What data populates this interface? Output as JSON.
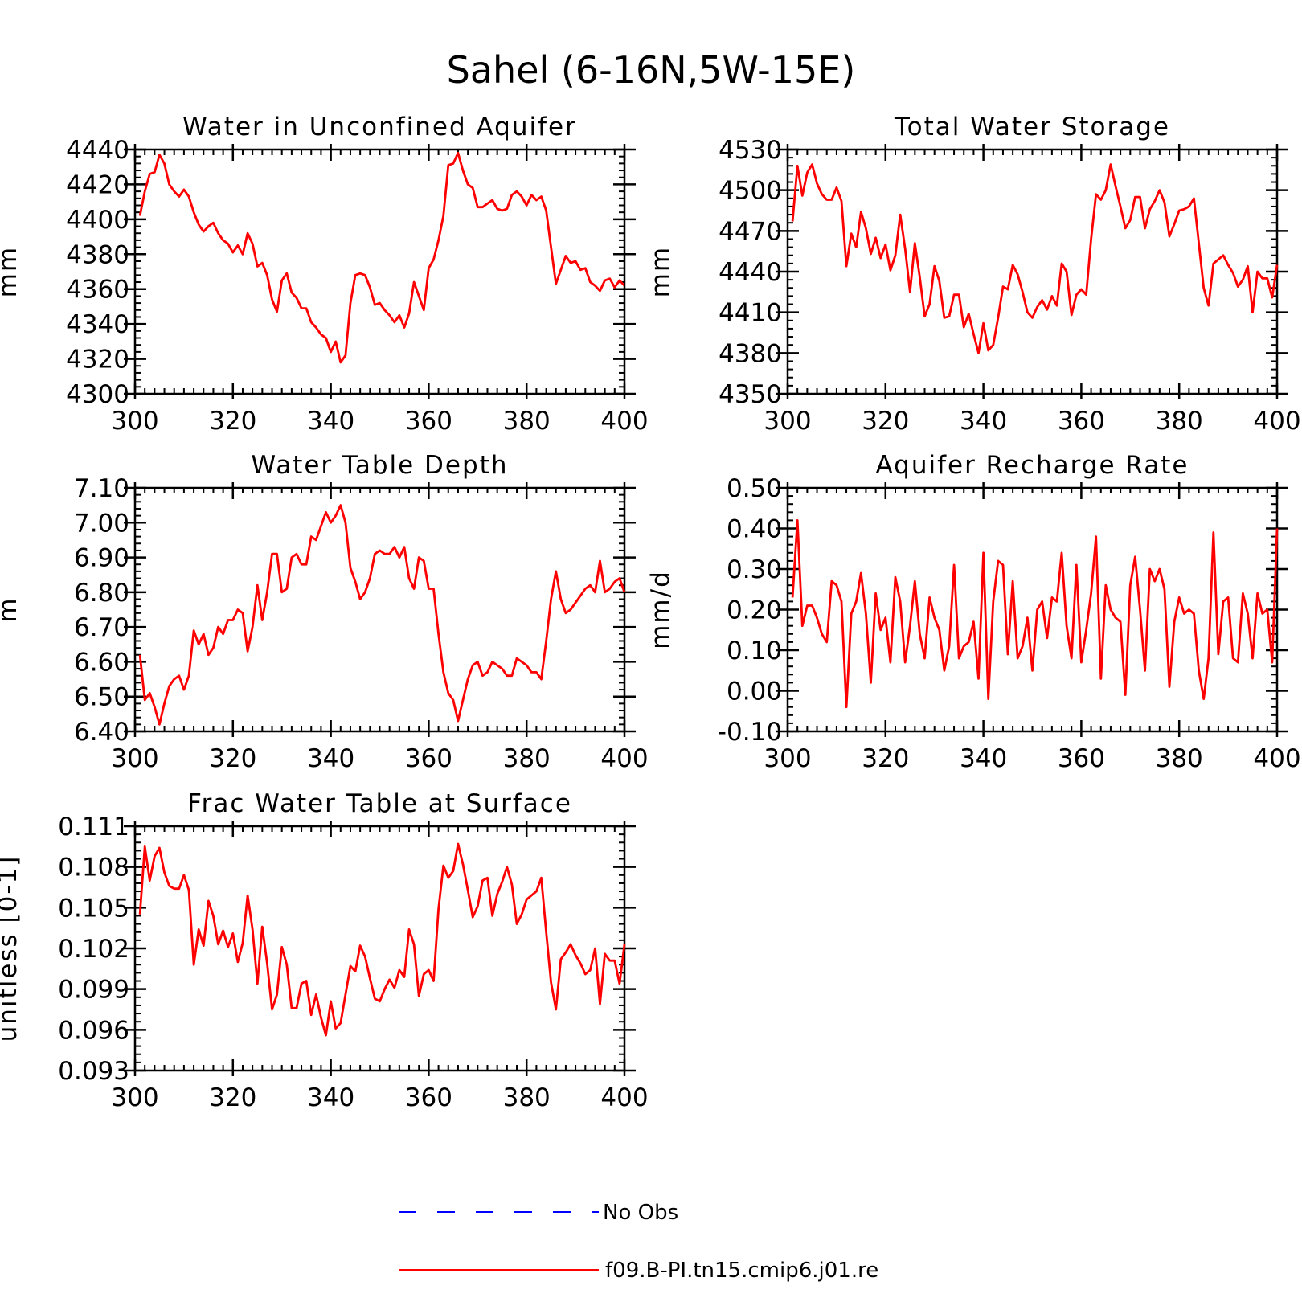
{
  "figure": {
    "title": "Sahel (6-16N,5W-15E)"
  },
  "legend": [
    {
      "label": "No Obs",
      "color": "#0000ff",
      "dash": "dashed"
    },
    {
      "label": "f09.B-PI.tn15.cmip6.j01.re",
      "color": "#ff0000",
      "dash": "solid"
    }
  ],
  "chart_data": [
    {
      "type": "line",
      "title": "Water in Unconfined Aquifer",
      "ylabel": "mm",
      "xlim": [
        300,
        400
      ],
      "ylim": [
        4300,
        4440
      ],
      "xticks": [
        300,
        320,
        340,
        360,
        380,
        400
      ],
      "yticks": [
        4300,
        4320,
        4340,
        4360,
        4380,
        4400,
        4420,
        4440
      ],
      "ytick_labels": [
        "4300",
        "4320",
        "4340",
        "4360",
        "4380",
        "4400",
        "4420",
        "4440"
      ],
      "series": [
        {
          "name": "f09.B-PI.tn15.cmip6.j01.re",
          "color": "#ff0000",
          "x_start": 301,
          "values": [
            4402,
            4416,
            4426,
            4427,
            4437,
            4432,
            4420,
            4416,
            4413,
            4417,
            4413,
            4404,
            4397,
            4393,
            4396,
            4398,
            4392,
            4388,
            4386,
            4381,
            4385,
            4380,
            4392,
            4386,
            4373,
            4375,
            4368,
            4354,
            4347,
            4365,
            4369,
            4358,
            4355,
            4349,
            4349,
            4341,
            4338,
            4334,
            4332,
            4324,
            4330,
            4318,
            4322,
            4352,
            4368,
            4369,
            4368,
            4361,
            4351,
            4352,
            4348,
            4345,
            4341,
            4345,
            4338,
            4346,
            4364,
            4356,
            4348,
            4372,
            4377,
            4388,
            4402,
            4431,
            4432,
            4438,
            4428,
            4420,
            4418,
            4407,
            4407,
            4409,
            4411,
            4406,
            4405,
            4406,
            4414,
            4416,
            4413,
            4408,
            4414,
            4411,
            4413,
            4405,
            4384,
            4363,
            4371,
            4379,
            4375,
            4376,
            4371,
            4372,
            4364,
            4362,
            4359,
            4365,
            4366,
            4361,
            4365,
            4362
          ]
        }
      ]
    },
    {
      "type": "line",
      "title": "Total Water Storage",
      "ylabel": "mm",
      "xlim": [
        300,
        400
      ],
      "ylim": [
        4350,
        4530
      ],
      "xticks": [
        300,
        320,
        340,
        360,
        380,
        400
      ],
      "yticks": [
        4350,
        4380,
        4410,
        4440,
        4470,
        4500,
        4530
      ],
      "ytick_labels": [
        "4350",
        "4380",
        "4410",
        "4440",
        "4470",
        "4500",
        "4530"
      ],
      "series": [
        {
          "name": "f09.B-PI.tn15.cmip6.j01.re",
          "color": "#ff0000",
          "x_start": 301,
          "values": [
            4477,
            4518,
            4496,
            4513,
            4519,
            4505,
            4497,
            4493,
            4493,
            4502,
            4492,
            4444,
            4468,
            4458,
            4484,
            4472,
            4453,
            4465,
            4450,
            4460,
            4441,
            4452,
            4482,
            4457,
            4425,
            4461,
            4436,
            4407,
            4416,
            4444,
            4433,
            4406,
            4407,
            4423,
            4423,
            4399,
            4409,
            4394,
            4380,
            4402,
            4382,
            4386,
            4406,
            4429,
            4427,
            4445,
            4438,
            4425,
            4410,
            4406,
            4414,
            4419,
            4412,
            4422,
            4415,
            4446,
            4440,
            4408,
            4423,
            4427,
            4423,
            4464,
            4497,
            4493,
            4500,
            4519,
            4503,
            4488,
            4472,
            4478,
            4495,
            4495,
            4472,
            4486,
            4492,
            4500,
            4491,
            4466,
            4475,
            4485,
            4486,
            4488,
            4494,
            4461,
            4428,
            4415,
            4446,
            4449,
            4452,
            4445,
            4439,
            4429,
            4434,
            4444,
            4410,
            4440,
            4435,
            4435,
            4421,
            4445
          ]
        }
      ]
    },
    {
      "type": "line",
      "title": "Water Table Depth",
      "ylabel": "m",
      "xlim": [
        300,
        400
      ],
      "ylim": [
        6.4,
        7.1
      ],
      "xticks": [
        300,
        320,
        340,
        360,
        380,
        400
      ],
      "yticks": [
        6.4,
        6.5,
        6.6,
        6.7,
        6.8,
        6.9,
        7.0,
        7.1
      ],
      "ytick_labels": [
        "6.40",
        "6.50",
        "6.60",
        "6.70",
        "6.80",
        "6.90",
        "7.00",
        "7.10"
      ],
      "series": [
        {
          "name": "f09.B-PI.tn15.cmip6.j01.re",
          "color": "#ff0000",
          "x_start": 301,
          "values": [
            6.62,
            6.49,
            6.51,
            6.47,
            6.42,
            6.48,
            6.53,
            6.55,
            6.56,
            6.52,
            6.56,
            6.69,
            6.65,
            6.68,
            6.62,
            6.64,
            6.7,
            6.68,
            6.72,
            6.72,
            6.75,
            6.74,
            6.63,
            6.7,
            6.82,
            6.72,
            6.8,
            6.91,
            6.91,
            6.8,
            6.81,
            6.9,
            6.91,
            6.88,
            6.88,
            6.96,
            6.95,
            6.99,
            7.03,
            7.0,
            7.02,
            7.05,
            7.0,
            6.87,
            6.83,
            6.78,
            6.8,
            6.84,
            6.91,
            6.92,
            6.91,
            6.91,
            6.93,
            6.9,
            6.93,
            6.84,
            6.81,
            6.9,
            6.89,
            6.81,
            6.81,
            6.68,
            6.57,
            6.51,
            6.49,
            6.43,
            6.49,
            6.55,
            6.59,
            6.6,
            6.56,
            6.57,
            6.6,
            6.59,
            6.58,
            6.56,
            6.56,
            6.61,
            6.6,
            6.59,
            6.57,
            6.57,
            6.55,
            6.66,
            6.78,
            6.86,
            6.78,
            6.74,
            6.75,
            6.77,
            6.79,
            6.81,
            6.82,
            6.8,
            6.89,
            6.8,
            6.81,
            6.83,
            6.84,
            6.8
          ]
        }
      ]
    },
    {
      "type": "line",
      "title": "Aquifer Recharge Rate",
      "ylabel": "mm/d",
      "xlim": [
        300,
        400
      ],
      "ylim": [
        -0.1,
        0.5
      ],
      "xticks": [
        300,
        320,
        340,
        360,
        380,
        400
      ],
      "yticks": [
        -0.1,
        0.0,
        0.1,
        0.2,
        0.3,
        0.4,
        0.5
      ],
      "ytick_labels": [
        "-0.10",
        "0.00",
        "0.10",
        "0.20",
        "0.30",
        "0.40",
        "0.50"
      ],
      "series": [
        {
          "name": "f09.B-PI.tn15.cmip6.j01.re",
          "color": "#ff0000",
          "x_start": 301,
          "values": [
            0.23,
            0.42,
            0.16,
            0.21,
            0.21,
            0.18,
            0.14,
            0.12,
            0.27,
            0.26,
            0.22,
            -0.04,
            0.19,
            0.22,
            0.29,
            0.19,
            0.02,
            0.24,
            0.15,
            0.18,
            0.07,
            0.28,
            0.22,
            0.07,
            0.16,
            0.27,
            0.14,
            0.08,
            0.23,
            0.18,
            0.15,
            0.05,
            0.11,
            0.31,
            0.08,
            0.11,
            0.12,
            0.17,
            0.03,
            0.34,
            -0.02,
            0.22,
            0.32,
            0.31,
            0.09,
            0.27,
            0.08,
            0.11,
            0.18,
            0.05,
            0.2,
            0.22,
            0.13,
            0.23,
            0.22,
            0.34,
            0.16,
            0.08,
            0.31,
            0.07,
            0.15,
            0.24,
            0.38,
            0.03,
            0.26,
            0.2,
            0.18,
            0.17,
            -0.01,
            0.26,
            0.33,
            0.2,
            0.05,
            0.3,
            0.27,
            0.3,
            0.25,
            0.01,
            0.17,
            0.23,
            0.19,
            0.2,
            0.19,
            0.05,
            -0.02,
            0.08,
            0.39,
            0.09,
            0.22,
            0.23,
            0.08,
            0.07,
            0.24,
            0.19,
            0.08,
            0.24,
            0.19,
            0.2,
            0.07,
            0.4
          ]
        }
      ]
    },
    {
      "type": "line",
      "title": "Frac Water Table at Surface",
      "ylabel": "unitless [0-1]",
      "xlim": [
        300,
        400
      ],
      "ylim": [
        0.093,
        0.111
      ],
      "xticks": [
        300,
        320,
        340,
        360,
        380,
        400
      ],
      "yticks": [
        0.093,
        0.096,
        0.099,
        0.102,
        0.105,
        0.108,
        0.111
      ],
      "ytick_labels": [
        "0.093",
        "0.096",
        "0.099",
        "0.102",
        "0.105",
        "0.108",
        "0.111"
      ],
      "series": [
        {
          "name": "f09.B-PI.tn15.cmip6.j01.re",
          "color": "#ff0000",
          "x_start": 301,
          "values": [
            0.1045,
            0.1095,
            0.107,
            0.1088,
            0.1094,
            0.1076,
            0.1066,
            0.1064,
            0.1064,
            0.1074,
            0.1063,
            0.1008,
            0.1034,
            0.1022,
            0.1055,
            0.1044,
            0.1023,
            0.1033,
            0.1021,
            0.1031,
            0.101,
            0.1024,
            0.1059,
            0.1034,
            0.0994,
            0.1036,
            0.1009,
            0.0975,
            0.0986,
            0.1021,
            0.1008,
            0.0976,
            0.0976,
            0.0994,
            0.0996,
            0.0971,
            0.0986,
            0.0969,
            0.0956,
            0.0981,
            0.0961,
            0.0965,
            0.0986,
            0.1007,
            0.1003,
            0.1022,
            0.1014,
            0.0998,
            0.0983,
            0.0981,
            0.099,
            0.0997,
            0.0991,
            0.1004,
            0.0999,
            0.1034,
            0.1023,
            0.0985,
            0.1001,
            0.1004,
            0.0996,
            0.1049,
            0.1081,
            0.1072,
            0.1077,
            0.1097,
            0.1082,
            0.1063,
            0.1043,
            0.1051,
            0.107,
            0.1072,
            0.1044,
            0.106,
            0.1069,
            0.108,
            0.1067,
            0.1038,
            0.1045,
            0.1056,
            0.1059,
            0.1062,
            0.1072,
            0.1032,
            0.0995,
            0.0975,
            0.1012,
            0.1017,
            0.1023,
            0.1015,
            0.1009,
            0.1001,
            0.1004,
            0.102,
            0.0979,
            0.1016,
            0.1011,
            0.1011,
            0.0994,
            0.1023
          ]
        }
      ]
    }
  ]
}
